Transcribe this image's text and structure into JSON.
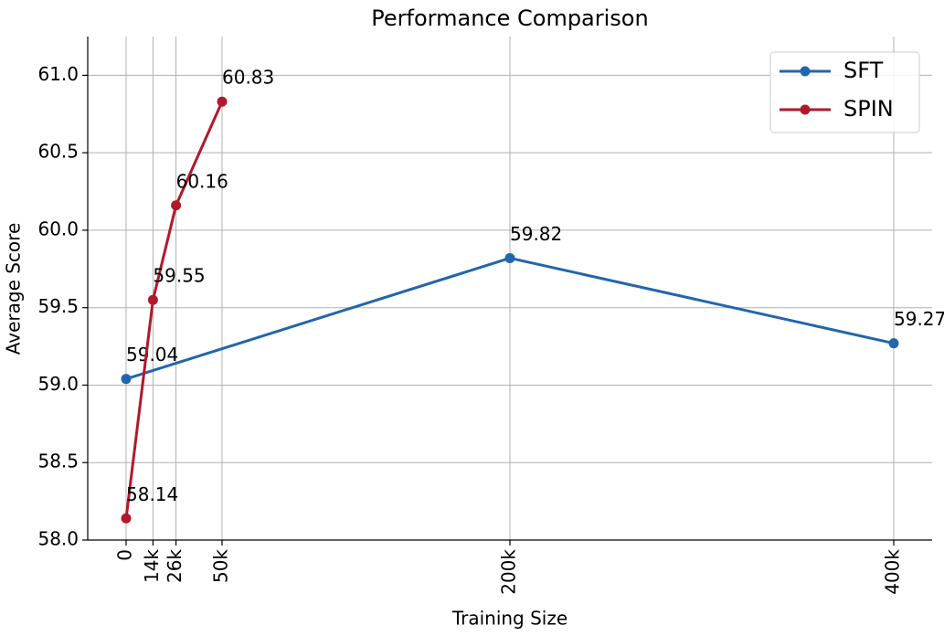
{
  "chart_data": {
    "type": "line",
    "title": "Performance Comparison",
    "x_label": "Training Size",
    "y_label": "Average Score",
    "xlim": [
      -20000,
      420000
    ],
    "ylim": [
      58,
      61.25
    ],
    "xticks": [
      {
        "value": 0,
        "label": "0"
      },
      {
        "value": 14000,
        "label": "14k"
      },
      {
        "value": 26000,
        "label": "26k"
      },
      {
        "value": 50000,
        "label": "50k"
      },
      {
        "value": 200000,
        "label": "200k"
      },
      {
        "value": 400000,
        "label": "400k"
      }
    ],
    "yticks": [
      {
        "value": 58,
        "label": "58.0"
      },
      {
        "value": 58.5,
        "label": "58.5"
      },
      {
        "value": 59,
        "label": "59.0"
      },
      {
        "value": 59.5,
        "label": "59.5"
      },
      {
        "value": 60,
        "label": "60.0"
      },
      {
        "value": 60.5,
        "label": "60.5"
      },
      {
        "value": 61,
        "label": "61.0"
      }
    ],
    "grid": true,
    "legend": "upper right",
    "series": [
      {
        "name": "SFT",
        "color": "#2166ac",
        "x": [
          0,
          200000,
          400000
        ],
        "values": [
          59.04,
          59.82,
          59.27
        ]
      },
      {
        "name": "SPIN",
        "color": "#b2182b",
        "x": [
          0,
          14000,
          26000,
          50000
        ],
        "values": [
          58.14,
          59.55,
          60.16,
          60.83
        ]
      }
    ]
  }
}
